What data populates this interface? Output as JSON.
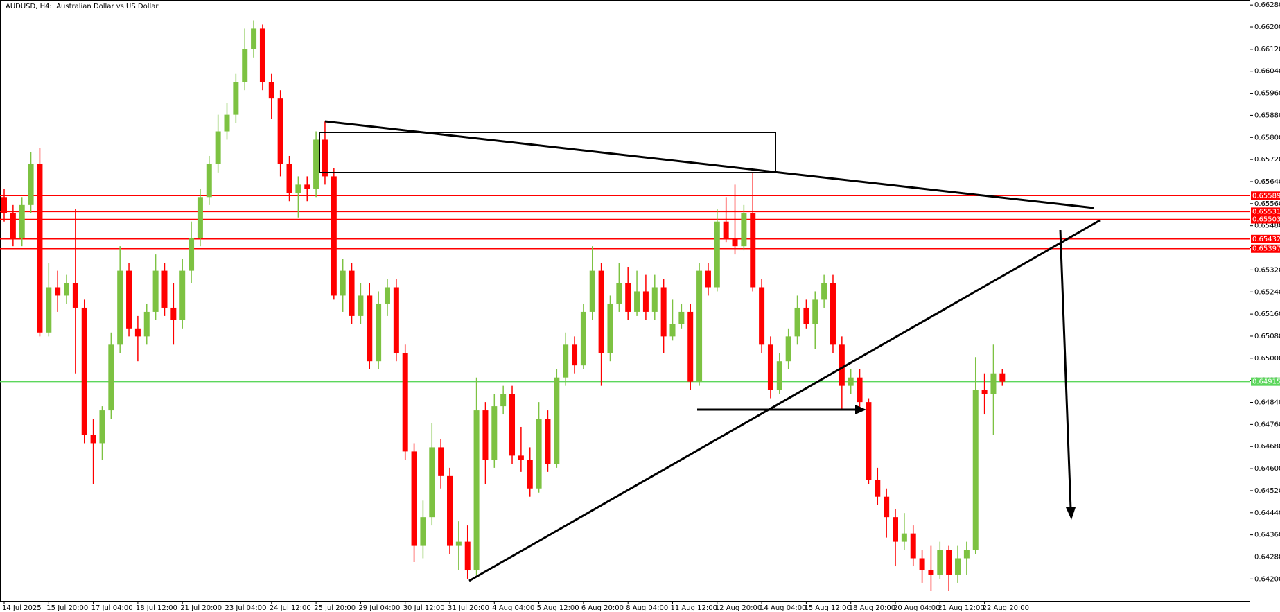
{
  "chart_data": {
    "type": "candlestick",
    "title": "AUDUSD, H4:  Australian Dollar vs US Dollar",
    "up_color": "#7dc242",
    "down_color": "#ff0000",
    "ylim": [
      0.64118,
      0.66298
    ],
    "yticks": [
      {
        "value": 0.6628,
        "label": "0.66280"
      },
      {
        "value": 0.662,
        "label": "0.66200"
      },
      {
        "value": 0.6612,
        "label": "0.66120"
      },
      {
        "value": 0.6604,
        "label": "0.66040"
      },
      {
        "value": 0.6596,
        "label": "0.65960"
      },
      {
        "value": 0.6588,
        "label": "0.65880"
      },
      {
        "value": 0.658,
        "label": "0.65800"
      },
      {
        "value": 0.6572,
        "label": "0.65720"
      },
      {
        "value": 0.6564,
        "label": "0.65640"
      },
      {
        "value": 0.6556,
        "label": "0.65560"
      },
      {
        "value": 0.6548,
        "label": "0.65480"
      },
      {
        "value": 0.654,
        "label": "0.65400"
      },
      {
        "value": 0.6532,
        "label": "0.65320"
      },
      {
        "value": 0.6524,
        "label": "0.65240"
      },
      {
        "value": 0.6516,
        "label": "0.65160"
      },
      {
        "value": 0.6508,
        "label": "0.65080"
      },
      {
        "value": 0.65,
        "label": "0.65000"
      },
      {
        "value": 0.6492,
        "label": "0.64920"
      },
      {
        "value": 0.6484,
        "label": "0.64840"
      },
      {
        "value": 0.6476,
        "label": "0.64760"
      },
      {
        "value": 0.6468,
        "label": "0.64680"
      },
      {
        "value": 0.646,
        "label": "0.64600"
      },
      {
        "value": 0.6452,
        "label": "0.64520"
      },
      {
        "value": 0.6444,
        "label": "0.64440"
      },
      {
        "value": 0.6436,
        "label": "0.64360"
      },
      {
        "value": 0.6428,
        "label": "0.64280"
      },
      {
        "value": 0.642,
        "label": "0.64200"
      }
    ],
    "levels": [
      0.65589,
      0.65531,
      0.65503,
      0.65432,
      0.65397
    ],
    "level_color": "#ff0000",
    "current_price": 0.64915,
    "current_color": "#5cd65c",
    "categories": [
      "14 Jul 2025",
      null,
      null,
      null,
      null,
      "15 Jul 20:00",
      null,
      null,
      null,
      null,
      "17 Jul 04:00",
      null,
      null,
      null,
      null,
      "18 Jul 12:00",
      null,
      null,
      null,
      null,
      "21 Jul 20:00",
      null,
      null,
      null,
      null,
      "23 Jul 04:00",
      null,
      null,
      null,
      null,
      "24 Jul 12:00",
      null,
      null,
      null,
      null,
      "25 Jul 20:00",
      null,
      null,
      null,
      null,
      "29 Jul 04:00",
      null,
      null,
      null,
      null,
      "30 Jul 12:00",
      null,
      null,
      null,
      null,
      "31 Jul 20:00",
      null,
      null,
      null,
      null,
      "4 Aug 04:00",
      null,
      null,
      null,
      null,
      "5 Aug 12:00",
      null,
      null,
      null,
      null,
      "6 Aug 20:00",
      null,
      null,
      null,
      null,
      "8 Aug 04:00",
      null,
      null,
      null,
      null,
      "11 Aug 12:00",
      null,
      null,
      null,
      null,
      "12 Aug 20:00",
      null,
      null,
      null,
      null,
      "14 Aug 04:00",
      null,
      null,
      null,
      null,
      "15 Aug 12:00",
      null,
      null,
      null,
      null,
      "18 Aug 20:00",
      null,
      null,
      null,
      null,
      "20 Aug 04:00",
      null,
      null,
      null,
      null,
      "21 Aug 12:00",
      null,
      null,
      null,
      null,
      "22 Aug 20:00",
      null,
      null
    ],
    "ohlc": [
      [
        0.65584,
        0.65614,
        0.65495,
        0.65525
      ],
      [
        0.65525,
        0.65555,
        0.65406,
        0.65436
      ],
      [
        0.65436,
        0.65584,
        0.65406,
        0.65555
      ],
      [
        0.65555,
        0.65748,
        0.65525,
        0.65703
      ],
      [
        0.65703,
        0.65763,
        0.65079,
        0.65093
      ],
      [
        0.65093,
        0.65346,
        0.65079,
        0.65257
      ],
      [
        0.65257,
        0.65317,
        0.65168,
        0.65227
      ],
      [
        0.65227,
        0.65302,
        0.65198,
        0.65272
      ],
      [
        0.65272,
        0.6554,
        0.64945,
        0.65183
      ],
      [
        0.65183,
        0.65212,
        0.64692,
        0.64722
      ],
      [
        0.64722,
        0.64781,
        0.64543,
        0.64692
      ],
      [
        0.64692,
        0.64826,
        0.64632,
        0.64811
      ],
      [
        0.64811,
        0.65093,
        0.64781,
        0.65049
      ],
      [
        0.65049,
        0.65406,
        0.65019,
        0.65317
      ],
      [
        0.65317,
        0.65346,
        0.65079,
        0.65108
      ],
      [
        0.65108,
        0.65153,
        0.64989,
        0.65079
      ],
      [
        0.65079,
        0.65198,
        0.65049,
        0.65168
      ],
      [
        0.65168,
        0.65376,
        0.65138,
        0.65317
      ],
      [
        0.65317,
        0.65346,
        0.65153,
        0.65183
      ],
      [
        0.65183,
        0.65272,
        0.65049,
        0.65138
      ],
      [
        0.65138,
        0.65361,
        0.65108,
        0.65317
      ],
      [
        0.65317,
        0.65495,
        0.65272,
        0.65436
      ],
      [
        0.65436,
        0.65614,
        0.65406,
        0.65584
      ],
      [
        0.65584,
        0.65733,
        0.65555,
        0.65703
      ],
      [
        0.65703,
        0.65882,
        0.65673,
        0.65822
      ],
      [
        0.65822,
        0.65926,
        0.65792,
        0.65882
      ],
      [
        0.65882,
        0.6603,
        0.65852,
        0.66001
      ],
      [
        0.66001,
        0.66194,
        0.65971,
        0.6612
      ],
      [
        0.6612,
        0.66224,
        0.6609,
        0.66194
      ],
      [
        0.66194,
        0.66209,
        0.65971,
        0.66001
      ],
      [
        0.66001,
        0.6603,
        0.65867,
        0.65941
      ],
      [
        0.65941,
        0.65971,
        0.65659,
        0.65703
      ],
      [
        0.65703,
        0.65733,
        0.65569,
        0.65599
      ],
      [
        0.65599,
        0.65659,
        0.6551,
        0.65629
      ],
      [
        0.65629,
        0.65659,
        0.65569,
        0.65614
      ],
      [
        0.65614,
        0.65822,
        0.65584,
        0.65792
      ],
      [
        0.65792,
        0.65858,
        0.65629,
        0.65659
      ],
      [
        0.65659,
        0.65688,
        0.65212,
        0.65227
      ],
      [
        0.65227,
        0.65361,
        0.65168,
        0.65317
      ],
      [
        0.65317,
        0.65346,
        0.65123,
        0.65153
      ],
      [
        0.65153,
        0.65272,
        0.65123,
        0.65227
      ],
      [
        0.65227,
        0.65272,
        0.6496,
        0.64989
      ],
      [
        0.64989,
        0.65242,
        0.6496,
        0.65198
      ],
      [
        0.65198,
        0.65287,
        0.65153,
        0.65257
      ],
      [
        0.65257,
        0.65287,
        0.64989,
        0.65019
      ],
      [
        0.65019,
        0.65049,
        0.64632,
        0.64662
      ],
      [
        0.64662,
        0.64692,
        0.64261,
        0.6432
      ],
      [
        0.6432,
        0.64484,
        0.64275,
        0.64424
      ],
      [
        0.64424,
        0.64766,
        0.64394,
        0.64677
      ],
      [
        0.64677,
        0.64707,
        0.64528,
        0.64573
      ],
      [
        0.64573,
        0.64603,
        0.6429,
        0.6432
      ],
      [
        0.6432,
        0.64409,
        0.64231,
        0.64335
      ],
      [
        0.64335,
        0.64394,
        0.64201,
        0.64231
      ],
      [
        0.64231,
        0.6493,
        0.64216,
        0.64811
      ],
      [
        0.64811,
        0.64841,
        0.64543,
        0.64632
      ],
      [
        0.64632,
        0.6487,
        0.64603,
        0.64826
      ],
      [
        0.64826,
        0.649,
        0.64796,
        0.6487
      ],
      [
        0.6487,
        0.649,
        0.64617,
        0.64647
      ],
      [
        0.64647,
        0.64751,
        0.64588,
        0.64632
      ],
      [
        0.64632,
        0.64677,
        0.64498,
        0.64528
      ],
      [
        0.64528,
        0.64841,
        0.64513,
        0.64781
      ],
      [
        0.64781,
        0.64811,
        0.64588,
        0.64617
      ],
      [
        0.64617,
        0.6496,
        0.64603,
        0.6493
      ],
      [
        0.6493,
        0.65093,
        0.649,
        0.65049
      ],
      [
        0.65049,
        0.65079,
        0.64945,
        0.64974
      ],
      [
        0.64974,
        0.65198,
        0.6496,
        0.65168
      ],
      [
        0.65168,
        0.65406,
        0.65138,
        0.65317
      ],
      [
        0.65317,
        0.65346,
        0.649,
        0.65019
      ],
      [
        0.65019,
        0.65227,
        0.64989,
        0.65198
      ],
      [
        0.65198,
        0.65346,
        0.65168,
        0.65272
      ],
      [
        0.65272,
        0.65331,
        0.65138,
        0.65168
      ],
      [
        0.65168,
        0.65317,
        0.65153,
        0.65242
      ],
      [
        0.65242,
        0.65302,
        0.65138,
        0.65168
      ],
      [
        0.65168,
        0.65302,
        0.65138,
        0.65257
      ],
      [
        0.65257,
        0.65287,
        0.65019,
        0.65079
      ],
      [
        0.65079,
        0.65212,
        0.65064,
        0.65123
      ],
      [
        0.65123,
        0.65198,
        0.65108,
        0.65168
      ],
      [
        0.65168,
        0.65198,
        0.64885,
        0.64915
      ],
      [
        0.64915,
        0.65346,
        0.649,
        0.65317
      ],
      [
        0.65317,
        0.65346,
        0.65227,
        0.65257
      ],
      [
        0.65257,
        0.6554,
        0.65242,
        0.65495
      ],
      [
        0.65495,
        0.65584,
        0.65421,
        0.65436
      ],
      [
        0.65436,
        0.65629,
        0.65376,
        0.65406
      ],
      [
        0.65406,
        0.65555,
        0.65391,
        0.65525
      ],
      [
        0.65525,
        0.65673,
        0.65242,
        0.65257
      ],
      [
        0.65257,
        0.65287,
        0.65019,
        0.65049
      ],
      [
        0.65049,
        0.65079,
        0.64855,
        0.64885
      ],
      [
        0.64885,
        0.65019,
        0.6487,
        0.64989
      ],
      [
        0.64989,
        0.65108,
        0.6496,
        0.65079
      ],
      [
        0.65079,
        0.65227,
        0.65049,
        0.65183
      ],
      [
        0.65183,
        0.65212,
        0.65108,
        0.65123
      ],
      [
        0.65123,
        0.65242,
        0.65034,
        0.65212
      ],
      [
        0.65212,
        0.65302,
        0.65183,
        0.65272
      ],
      [
        0.65272,
        0.65302,
        0.65019,
        0.65049
      ],
      [
        0.65049,
        0.65079,
        0.64811,
        0.649
      ],
      [
        0.649,
        0.6496,
        0.6487,
        0.6493
      ],
      [
        0.6493,
        0.6496,
        0.64811,
        0.64841
      ],
      [
        0.64841,
        0.64855,
        0.64543,
        0.64558
      ],
      [
        0.64558,
        0.64603,
        0.64469,
        0.64498
      ],
      [
        0.64498,
        0.64528,
        0.6435,
        0.64424
      ],
      [
        0.64424,
        0.64454,
        0.64246,
        0.64335
      ],
      [
        0.64335,
        0.64439,
        0.64305,
        0.64365
      ],
      [
        0.64365,
        0.64394,
        0.64246,
        0.64275
      ],
      [
        0.64275,
        0.64305,
        0.64186,
        0.64231
      ],
      [
        0.64231,
        0.6432,
        0.64157,
        0.64216
      ],
      [
        0.64216,
        0.64335,
        0.64201,
        0.64305
      ],
      [
        0.64305,
        0.6432,
        0.64157,
        0.64216
      ],
      [
        0.64216,
        0.6432,
        0.64186,
        0.64275
      ],
      [
        0.64275,
        0.64335,
        0.64216,
        0.64305
      ],
      [
        0.64305,
        0.65004,
        0.6429,
        0.64885
      ],
      [
        0.64885,
        0.64945,
        0.64796,
        0.6487
      ],
      [
        0.6487,
        0.65049,
        0.64722,
        0.64945
      ],
      [
        0.64945,
        0.6496,
        0.649,
        0.64915
      ]
    ]
  }
}
